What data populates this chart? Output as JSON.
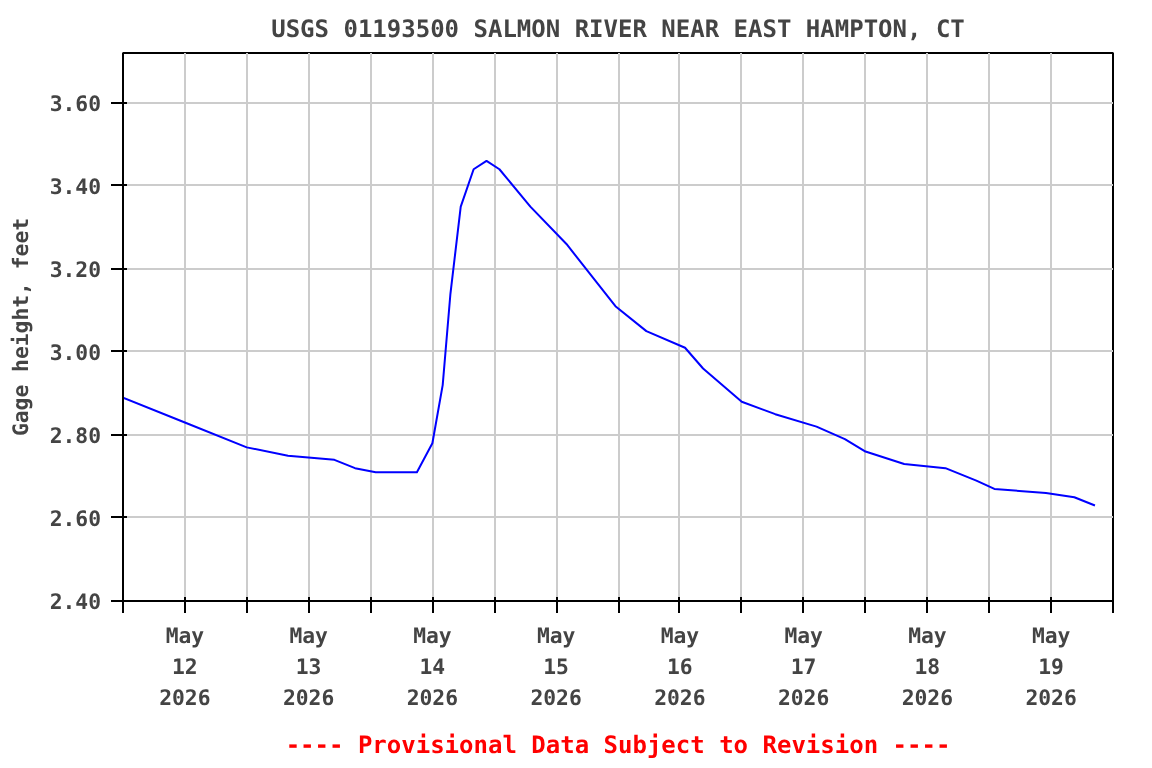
{
  "chart_data": {
    "type": "line",
    "title": "USGS 01193500 SALMON RIVER NEAR EAST HAMPTON, CT",
    "ylabel": "Gage height, feet",
    "annotations": [
      "---- Provisional Data Subject to Revision ----"
    ],
    "x": [
      "2026-05-12T00:00",
      "2026-05-12T12:00",
      "2026-05-13T00:00",
      "2026-05-13T08:00",
      "2026-05-13T17:00",
      "2026-05-13T21:00",
      "2026-05-14T01:00",
      "2026-05-14T09:00",
      "2026-05-14T12:00",
      "2026-05-14T14:00",
      "2026-05-14T15:30",
      "2026-05-14T17:30",
      "2026-05-14T20:00",
      "2026-05-14T22:30",
      "2026-05-15T01:00",
      "2026-05-15T07:00",
      "2026-05-15T14:00",
      "2026-05-15T23:30",
      "2026-05-16T05:30",
      "2026-05-16T13:00",
      "2026-05-16T16:30",
      "2026-05-17T00:00",
      "2026-05-17T06:30",
      "2026-05-17T14:30",
      "2026-05-17T20:00",
      "2026-05-18T00:00",
      "2026-05-18T07:30",
      "2026-05-18T15:30",
      "2026-05-18T21:30",
      "2026-05-19T01:00",
      "2026-05-19T11:00",
      "2026-05-19T16:30",
      "2026-05-19T20:30"
    ],
    "series": [
      {
        "color": "#0000ff",
        "values": [
          2.89,
          2.83,
          2.77,
          2.75,
          2.74,
          2.72,
          2.71,
          2.71,
          2.78,
          2.92,
          3.14,
          3.35,
          3.44,
          3.46,
          3.44,
          3.35,
          3.26,
          3.11,
          3.05,
          3.01,
          2.96,
          2.88,
          2.85,
          2.82,
          2.79,
          2.76,
          2.73,
          2.72,
          2.69,
          2.67,
          2.66,
          2.65,
          2.63
        ]
      }
    ],
    "xlim": [
      "2026-05-12T00:00",
      "2026-05-20T00:00"
    ],
    "xticks": [
      {
        "value": "2026-05-12T00:00",
        "label": null
      },
      {
        "value": "2026-05-12T12:00",
        "label": "May\n12\n2026"
      },
      {
        "value": "2026-05-13T00:00",
        "label": null
      },
      {
        "value": "2026-05-13T12:00",
        "label": "May\n13\n2026"
      },
      {
        "value": "2026-05-14T00:00",
        "label": null
      },
      {
        "value": "2026-05-14T12:00",
        "label": "May\n14\n2026"
      },
      {
        "value": "2026-05-15T00:00",
        "label": null
      },
      {
        "value": "2026-05-15T12:00",
        "label": "May\n15\n2026"
      },
      {
        "value": "2026-05-16T00:00",
        "label": null
      },
      {
        "value": "2026-05-16T12:00",
        "label": "May\n16\n2026"
      },
      {
        "value": "2026-05-17T00:00",
        "label": null
      },
      {
        "value": "2026-05-17T12:00",
        "label": "May\n17\n2026"
      },
      {
        "value": "2026-05-18T00:00",
        "label": null
      },
      {
        "value": "2026-05-18T12:00",
        "label": "May\n18\n2026"
      },
      {
        "value": "2026-05-19T00:00",
        "label": null
      },
      {
        "value": "2026-05-19T12:00",
        "label": "May\n19\n2026"
      },
      {
        "value": "2026-05-20T00:00",
        "label": null
      }
    ],
    "ylim": [
      2.4,
      3.72
    ],
    "yticks": [
      {
        "value": 2.4,
        "label": "2.40"
      },
      {
        "value": 2.6,
        "label": "2.60"
      },
      {
        "value": 2.8,
        "label": "2.80"
      },
      {
        "value": 3.0,
        "label": "3.00"
      },
      {
        "value": 3.2,
        "label": "3.20"
      },
      {
        "value": 3.4,
        "label": "3.40"
      },
      {
        "value": 3.6,
        "label": "3.60"
      }
    ],
    "grid": true,
    "marker": "none",
    "line_style": "solid"
  }
}
